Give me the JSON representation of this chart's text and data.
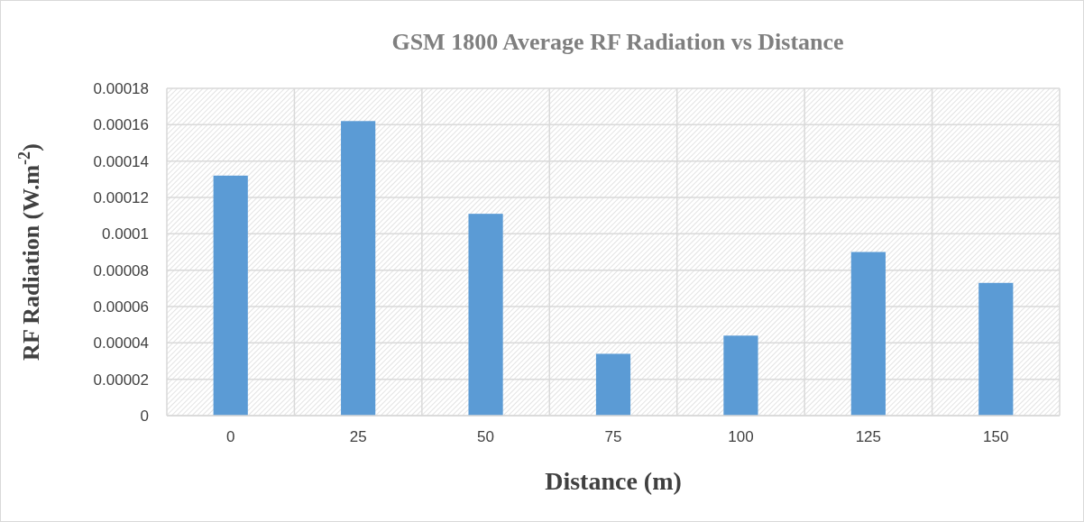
{
  "chart_data": {
    "type": "bar",
    "title": "GSM 1800 Average RF Radiation vs Distance",
    "xlabel": "Distance (m)",
    "ylabel": "RF Radiation (W.m$^{-2}$)",
    "categories": [
      "0",
      "25",
      "50",
      "75",
      "100",
      "125",
      "150"
    ],
    "values": [
      0.000132,
      0.000162,
      0.000111,
      3.4e-05,
      4.4e-05,
      9e-05,
      7.3e-05
    ],
    "color": "#5b9bd5",
    "ylim": [
      0,
      0.00018
    ],
    "yticks": [
      0,
      {
        "value": 2e-05,
        "label": "0.00002"
      },
      {
        "value": 4e-05,
        "label": "0.00004"
      },
      {
        "value": 6e-05,
        "label": "0.00006"
      },
      {
        "value": 8e-05,
        "label": "0.00008"
      },
      0.0001,
      0.00012,
      0.00014,
      0.00016,
      0.00018
    ],
    "grid": true
  }
}
